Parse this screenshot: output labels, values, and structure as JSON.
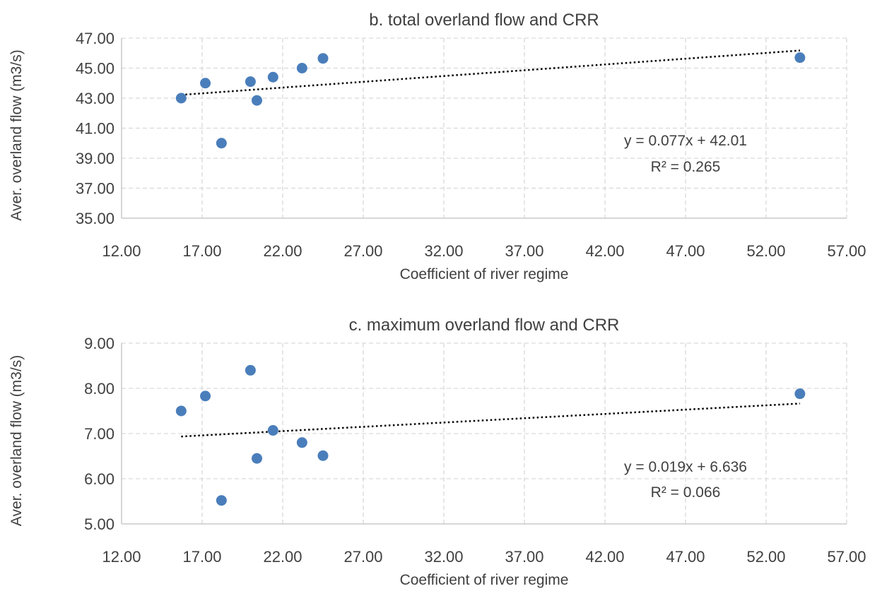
{
  "colors": {
    "marker": "#4a7ebb",
    "trendline": "#000000",
    "grid": "#d9d9d9",
    "text": "#404040"
  },
  "chart_data": [
    {
      "type": "scatter",
      "title": "b. total overland flow and CRR",
      "xlabel": "Coefficient of river regime",
      "ylabel": "Aver. overland flow (m3/s)",
      "xlim": [
        12,
        57
      ],
      "ylim": [
        35,
        47
      ],
      "grid": true,
      "xticks": [
        "12.00",
        "17.00",
        "22.00",
        "27.00",
        "32.00",
        "37.00",
        "42.00",
        "47.00",
        "52.00",
        "57.00"
      ],
      "yticks": [
        "35.00",
        "37.00",
        "39.00",
        "41.00",
        "43.00",
        "45.00",
        "47.00"
      ],
      "points": [
        {
          "x": 15.7,
          "y": 43.0
        },
        {
          "x": 17.2,
          "y": 44.0
        },
        {
          "x": 18.2,
          "y": 40.0
        },
        {
          "x": 20.0,
          "y": 44.1
        },
        {
          "x": 20.4,
          "y": 42.85
        },
        {
          "x": 21.4,
          "y": 44.4
        },
        {
          "x": 23.2,
          "y": 45.0
        },
        {
          "x": 24.5,
          "y": 45.65
        },
        {
          "x": 54.1,
          "y": 45.7
        }
      ],
      "trendline": {
        "slope": 0.077,
        "intercept": 42.01,
        "x_range": [
          15.7,
          54.1
        ]
      },
      "equation": "y = 0.077x + 42.01",
      "r_squared": "R² = 0.265"
    },
    {
      "type": "scatter",
      "title": "c. maximum overland flow and CRR",
      "xlabel": "Coefficient of river regime",
      "ylabel": "Aver. overland flow (m3/s)",
      "xlim": [
        12,
        57
      ],
      "ylim": [
        5,
        9
      ],
      "grid": true,
      "xticks": [
        "12.00",
        "17.00",
        "22.00",
        "27.00",
        "32.00",
        "37.00",
        "42.00",
        "47.00",
        "52.00",
        "57.00"
      ],
      "yticks": [
        "5.00",
        "6.00",
        "7.00",
        "8.00",
        "9.00"
      ],
      "points": [
        {
          "x": 15.7,
          "y": 7.5
        },
        {
          "x": 17.2,
          "y": 7.83
        },
        {
          "x": 18.2,
          "y": 5.52
        },
        {
          "x": 20.0,
          "y": 8.4
        },
        {
          "x": 20.4,
          "y": 6.45
        },
        {
          "x": 21.4,
          "y": 7.07
        },
        {
          "x": 23.2,
          "y": 6.8
        },
        {
          "x": 24.5,
          "y": 6.51
        },
        {
          "x": 54.1,
          "y": 7.88
        }
      ],
      "trendline": {
        "slope": 0.019,
        "intercept": 6.636,
        "x_range": [
          15.7,
          54.1
        ]
      },
      "equation": "y = 0.019x + 6.636",
      "r_squared": "R² = 0.066"
    }
  ]
}
